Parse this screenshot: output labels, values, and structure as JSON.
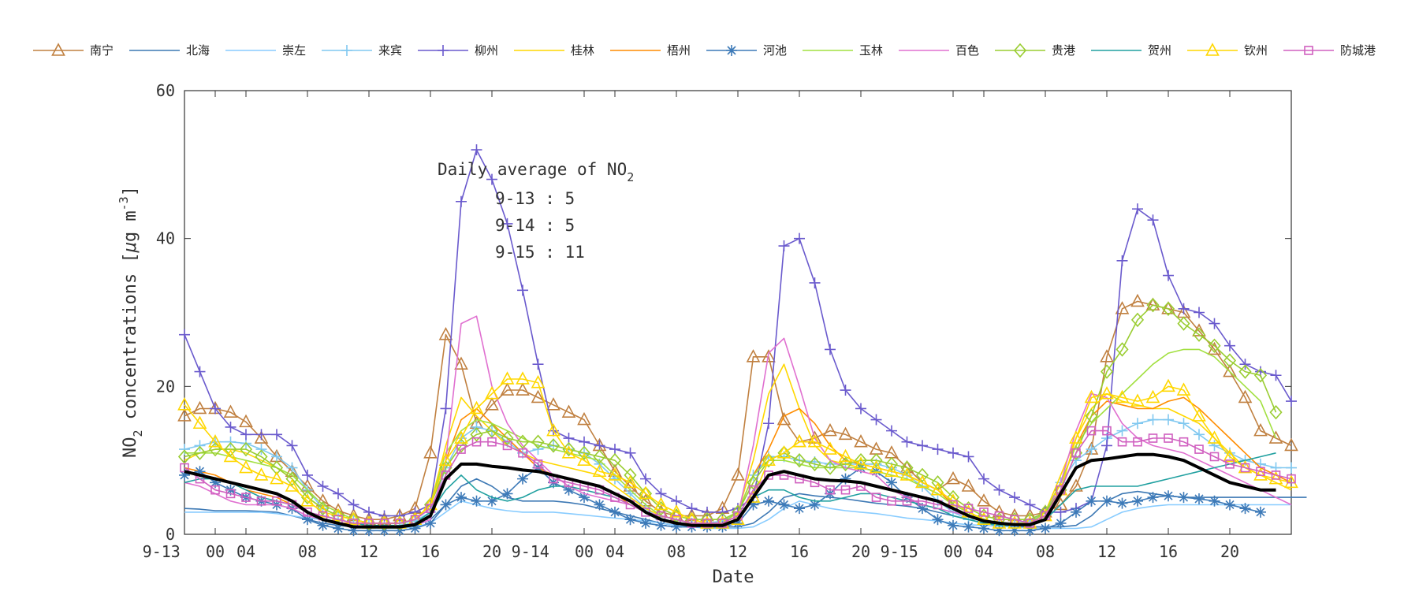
{
  "chart_data": {
    "type": "line",
    "xlabel": "Date",
    "ylabel_parts": [
      "NO",
      "2",
      " concentrations [",
      "μ",
      "g m",
      "-3",
      "]"
    ],
    "ylim": [
      0,
      60
    ],
    "y_ticks": [
      0,
      20,
      40,
      60
    ],
    "x_range_hours": [
      0,
      72
    ],
    "x_ticks": [
      {
        "hour": -1.5,
        "label": "9-13"
      },
      {
        "hour": 2,
        "label": "00"
      },
      {
        "hour": 4,
        "label": "04"
      },
      {
        "hour": 8,
        "label": "08"
      },
      {
        "hour": 12,
        "label": "12"
      },
      {
        "hour": 16,
        "label": "16"
      },
      {
        "hour": 20,
        "label": "20"
      },
      {
        "hour": 22.5,
        "label": "9-14"
      },
      {
        "hour": 26,
        "label": "00"
      },
      {
        "hour": 28,
        "label": "04"
      },
      {
        "hour": 32,
        "label": "08"
      },
      {
        "hour": 36,
        "label": "12"
      },
      {
        "hour": 40,
        "label": "16"
      },
      {
        "hour": 44,
        "label": "20"
      },
      {
        "hour": 46.5,
        "label": "9-15"
      },
      {
        "hour": 50,
        "label": "00"
      },
      {
        "hour": 52,
        "label": "04"
      },
      {
        "hour": 56,
        "label": "08"
      },
      {
        "hour": 60,
        "label": "12"
      },
      {
        "hour": 64,
        "label": "16"
      },
      {
        "hour": 68,
        "label": "20"
      }
    ],
    "annotation": {
      "title_parts": [
        "Daily average of NO",
        "2"
      ],
      "lines": [
        "9-13 : 5",
        "9-14 : 5",
        "9-15 : 11"
      ]
    },
    "legend_placement": "top",
    "series": [
      {
        "name": "南宁",
        "color": "#c08040",
        "marker": "triangle",
        "values": [
          16,
          17,
          17,
          16.5,
          15.2,
          13,
          10.5,
          8.5,
          6.5,
          4.5,
          3.2,
          2.5,
          2,
          2,
          2.5,
          3.5,
          11,
          27,
          23,
          15,
          17.5,
          19.5,
          19.5,
          18.5,
          17.5,
          16.5,
          15.5,
          12,
          8.5,
          6.5,
          4.5,
          3,
          2.5,
          2.5,
          2.5,
          3.5,
          8,
          24,
          24,
          15.5,
          12.5,
          13,
          14,
          13.5,
          12.5,
          11.5,
          11,
          9,
          7,
          6,
          7.5,
          6.5,
          4.5,
          3,
          2.5,
          2.5,
          3,
          4,
          6.5,
          11.5,
          24,
          30.5,
          31.5,
          31,
          30.5,
          30,
          27.5,
          25,
          22,
          18.5,
          14,
          13,
          12
        ]
      },
      {
        "name": "北海",
        "color": "#3c78b4",
        "marker": "none",
        "values": [
          3.5,
          3.4,
          3.2,
          3.2,
          3.2,
          3.1,
          3,
          2.5,
          2,
          1.5,
          1.2,
          1,
          1,
          1,
          1,
          1.2,
          2,
          4,
          6.5,
          7.5,
          6.5,
          5,
          4.5,
          4.5,
          4.5,
          4.3,
          4,
          3.5,
          3,
          2.5,
          2,
          1.5,
          1.2,
          1,
          1,
          1,
          1,
          1.5,
          3,
          5,
          5.5,
          5.2,
          5,
          4.8,
          4.5,
          4.2,
          4,
          3.8,
          3.5,
          3,
          2.5,
          2,
          1.5,
          1.2,
          1,
          1,
          1,
          1,
          1.2,
          2.5,
          4.5,
          5.5,
          5.8,
          5.5,
          5.2,
          5,
          5,
          5,
          5,
          5,
          5,
          5,
          5,
          5
        ]
      },
      {
        "name": "崇左",
        "color": "#88ccff",
        "marker": "none",
        "values": [
          3,
          3,
          3,
          3,
          3,
          3,
          2.8,
          2.5,
          2.2,
          2,
          1.5,
          1,
          0.8,
          0.8,
          0.8,
          1,
          1.5,
          3,
          4.5,
          4,
          3.5,
          3.2,
          3,
          3,
          3,
          2.8,
          2.6,
          2.4,
          2.2,
          2,
          1.8,
          1.5,
          1.2,
          1,
          0.8,
          0.8,
          0.8,
          1,
          2,
          3.5,
          4.5,
          4,
          3.5,
          3.2,
          3,
          2.8,
          2.5,
          2.2,
          2,
          1.8,
          1.5,
          1.3,
          1.2,
          1.1,
          1,
          0.8,
          0.8,
          0.8,
          0.8,
          1,
          2,
          3,
          3.5,
          3.8,
          4,
          4,
          4,
          4,
          4,
          4,
          4,
          4,
          4
        ]
      },
      {
        "name": "来宾",
        "color": "#80c8f0",
        "marker": "plus",
        "values": [
          11.5,
          12,
          12.5,
          12.5,
          12.3,
          11.5,
          10.5,
          9,
          6,
          3.5,
          2.5,
          2,
          1.5,
          1.5,
          1.5,
          1.8,
          3,
          9,
          13,
          14.5,
          14,
          12.5,
          11,
          11.5,
          12,
          11.5,
          11,
          9.5,
          7.5,
          5.5,
          3.5,
          2,
          1.5,
          1.5,
          1.5,
          1.8,
          3,
          8,
          10.5,
          10.5,
          10,
          9.8,
          9.5,
          9.5,
          9.5,
          9.5,
          9,
          8,
          6.5,
          4.5,
          3,
          2,
          1.5,
          1.5,
          1.5,
          1.8,
          3,
          7,
          10,
          11.5,
          13,
          14,
          15,
          15.5,
          15.5,
          15,
          13.5,
          12,
          11,
          10,
          9.5,
          9,
          9
        ]
      },
      {
        "name": "柳州",
        "color": "#6a5acd",
        "marker": "plus",
        "values": [
          27,
          22,
          17,
          14.5,
          13.5,
          13.5,
          13.5,
          12,
          8,
          6.5,
          5.5,
          4,
          3,
          2.5,
          2.5,
          3,
          4,
          17,
          45,
          52,
          48,
          42,
          33,
          23,
          14,
          13,
          12.5,
          12,
          11.5,
          11,
          7.5,
          5.5,
          4.5,
          3.5,
          3,
          3,
          3.5,
          5,
          15,
          39,
          40,
          34,
          25,
          19.5,
          17,
          15.5,
          14,
          12.5,
          12,
          11.5,
          11,
          10.5,
          7.5,
          6,
          5,
          4,
          3,
          3,
          3.5,
          4.5,
          12,
          37,
          44,
          42.5,
          35,
          30.5,
          30,
          28.5,
          25.5,
          23,
          22,
          21.5,
          18
        ]
      },
      {
        "name": "桂林",
        "color": "#ffd700",
        "marker": "none",
        "values": [
          10,
          11,
          11.5,
          11.5,
          11,
          10,
          9,
          7.5,
          5,
          3.5,
          2.5,
          2,
          1.5,
          1.5,
          1.5,
          2,
          4,
          12,
          18.5,
          16,
          14,
          12,
          11,
          10,
          9.5,
          9,
          8.5,
          8,
          6.5,
          5,
          3.5,
          2.5,
          2,
          1.5,
          1.5,
          1.5,
          3,
          10,
          19,
          23,
          17,
          12,
          10,
          9.5,
          9,
          8.5,
          8,
          7.5,
          6.5,
          5.5,
          4,
          3,
          2,
          1.5,
          1.5,
          1.5,
          3,
          8,
          13,
          17,
          19,
          18,
          17.5,
          17,
          17,
          16,
          15,
          13,
          11,
          9,
          8,
          7,
          6
        ]
      },
      {
        "name": "梧州",
        "color": "#ff8c00",
        "marker": "none",
        "values": [
          9,
          8.5,
          8,
          7,
          6,
          5.5,
          5,
          4,
          3,
          2,
          1.5,
          1.5,
          1.5,
          1.5,
          1.5,
          2,
          4,
          10,
          15.5,
          17,
          15,
          13,
          11,
          9,
          8,
          7.5,
          7,
          6.5,
          5.5,
          4,
          3,
          2,
          1.5,
          1.5,
          1.5,
          1.5,
          3,
          8,
          11.5,
          16,
          17,
          15,
          12,
          10,
          9.5,
          9,
          8.5,
          8,
          7,
          6,
          4,
          3,
          2,
          1.5,
          1.5,
          1.5,
          3,
          7,
          12,
          16,
          18,
          17.5,
          17,
          17,
          18,
          18.5,
          17,
          15,
          13,
          11,
          9,
          8,
          7
        ]
      },
      {
        "name": "河池",
        "color": "#3d7ab8",
        "marker": "asterisk",
        "values": [
          8,
          8.5,
          7,
          6,
          5,
          4.5,
          4,
          3.5,
          2,
          1.2,
          0.8,
          0.5,
          0.5,
          0.5,
          0.5,
          0.8,
          1.5,
          4,
          5,
          4.5,
          4.5,
          5.5,
          7.5,
          9,
          7,
          6,
          5,
          4,
          3,
          2,
          1.5,
          1.2,
          1,
          1,
          1,
          1,
          1.5,
          4,
          4.5,
          4,
          3.5,
          4,
          5.5,
          7.5,
          9,
          8.5,
          7,
          5,
          3.5,
          2,
          1.2,
          1,
          0.8,
          0.5,
          0.5,
          0.5,
          0.8,
          1.5,
          3,
          4.5,
          4.5,
          4.2,
          4.5,
          5,
          5.2,
          5,
          4.8,
          4.5,
          4,
          3.5,
          3
        ]
      },
      {
        "name": "玉林",
        "color": "#a2e040",
        "marker": "none",
        "values": [
          11,
          11,
          11,
          10.5,
          10,
          9.5,
          9,
          8,
          6,
          4,
          3,
          2,
          1.5,
          1.5,
          1.5,
          2,
          4,
          11,
          14,
          15.5,
          15,
          14,
          13,
          12,
          11.5,
          11,
          10.5,
          10,
          8,
          6,
          4,
          2.5,
          2,
          1.5,
          1.5,
          1.5,
          3,
          8,
          10,
          10,
          9.5,
          9,
          9,
          9,
          9,
          8.5,
          8,
          7.5,
          6.5,
          5.5,
          4,
          3,
          2,
          1.5,
          1.5,
          1.5,
          3,
          7,
          12,
          15,
          17,
          19,
          21,
          23,
          24.5,
          25,
          25,
          24,
          22,
          20,
          18,
          13
        ]
      },
      {
        "name": "百色",
        "color": "#e070d0",
        "marker": "none",
        "values": [
          7,
          6.5,
          5.5,
          4.5,
          4,
          4,
          4,
          3.5,
          2.5,
          2,
          1.5,
          1.2,
          1,
          1,
          1,
          1.2,
          2,
          10,
          28.5,
          29.5,
          20,
          15,
          12,
          10,
          8,
          6.5,
          5.5,
          5,
          4.5,
          4,
          3,
          2,
          1.5,
          1.5,
          1.5,
          1.5,
          2.5,
          12,
          24.5,
          26.5,
          20,
          13,
          10,
          9,
          8.5,
          8,
          6,
          5,
          4,
          3.5,
          3,
          2.5,
          2,
          1.5,
          1.5,
          1.5,
          2.5,
          7,
          14,
          19,
          18.5,
          15,
          13,
          12,
          11.5,
          11,
          10,
          9,
          8,
          7,
          6,
          5,
          4
        ]
      },
      {
        "name": "贵港",
        "color": "#9acd32",
        "marker": "diamond",
        "values": [
          10.5,
          11,
          11.5,
          11.5,
          11.5,
          10.5,
          9,
          7.5,
          5,
          3.5,
          2.5,
          2,
          1.5,
          1.5,
          1.5,
          2,
          4,
          9,
          12,
          13.5,
          14,
          13,
          12.5,
          12.5,
          12,
          11.5,
          11,
          10.5,
          10,
          8,
          5.5,
          3.5,
          2.5,
          2,
          2,
          2,
          3,
          7,
          10,
          11,
          10,
          9.5,
          9,
          9.5,
          10,
          10,
          9.5,
          9,
          8,
          7,
          5,
          3.5,
          2.5,
          2,
          2,
          2,
          3,
          6,
          11,
          16,
          22,
          25,
          29,
          31,
          30.5,
          28.5,
          27,
          25.5,
          23.5,
          22,
          21.5,
          16.5
        ]
      },
      {
        "name": "贺州",
        "color": "#20a0a0",
        "marker": "none",
        "values": [
          7,
          7.5,
          7.5,
          7,
          6,
          5,
          4.5,
          4,
          3,
          2.5,
          2,
          1.5,
          1.2,
          1.2,
          1.2,
          1.5,
          3,
          6,
          8,
          6,
          5,
          4.5,
          5,
          6,
          6.5,
          6.5,
          6,
          5.5,
          5,
          4,
          3,
          2,
          1.5,
          1.2,
          1.2,
          1.2,
          2,
          5,
          6,
          6,
          5,
          4.5,
          4.5,
          5,
          5.5,
          5.5,
          5,
          4.5,
          4,
          3.5,
          2.5,
          2,
          1.5,
          1.2,
          1.2,
          1.2,
          2,
          4,
          6,
          6.5,
          6.5,
          6.5,
          6.5,
          7,
          7.5,
          8,
          8.5,
          9,
          9.5,
          10,
          10.5,
          11
        ]
      },
      {
        "name": "钦州",
        "color": "#ffd700",
        "marker": "triangle",
        "values": [
          17.5,
          15,
          12.5,
          10.5,
          9,
          8,
          7.5,
          6.5,
          4.5,
          3,
          2.5,
          2,
          1.5,
          1.5,
          1.5,
          2,
          4,
          10,
          13,
          17,
          19,
          21,
          21,
          20.5,
          14,
          11,
          10,
          8.5,
          8,
          7,
          5.5,
          4,
          3,
          2,
          1.5,
          1.5,
          2,
          5,
          10,
          11,
          12.5,
          12.5,
          11.5,
          10.5,
          9.5,
          9,
          8.5,
          8,
          7,
          6,
          4.5,
          3,
          2,
          1.5,
          1.5,
          1.5,
          2.5,
          6,
          13,
          18.5,
          19,
          18.5,
          18,
          18.5,
          20,
          19.5,
          16,
          13,
          10.5,
          9,
          8,
          7.5,
          7
        ]
      },
      {
        "name": "防城港",
        "color": "#d060c0",
        "marker": "square",
        "values": [
          9,
          7.5,
          6,
          5.5,
          5,
          4.5,
          4.5,
          4,
          3,
          2.5,
          2,
          1.5,
          1.5,
          1.5,
          1.5,
          2,
          3.5,
          8,
          11.5,
          12.5,
          12.5,
          12,
          11,
          9.5,
          7.5,
          7,
          6.5,
          6,
          5,
          4,
          3,
          2.5,
          2,
          1.5,
          1.5,
          1.5,
          2.5,
          6,
          8,
          8,
          7.5,
          7,
          6,
          6,
          6.5,
          5,
          4.5,
          4.5,
          4.5,
          4,
          4,
          3.5,
          3,
          2.5,
          2,
          1.5,
          2.5,
          6,
          11,
          14,
          14,
          12.5,
          12.5,
          13,
          13,
          12.5,
          11.5,
          10.5,
          9.5,
          9,
          8.5,
          8,
          7.5
        ]
      },
      {
        "name": "",
        "color": "#000000",
        "marker": "none",
        "width": 4,
        "values": [
          8.5,
          8,
          7.5,
          7,
          6.5,
          6,
          5.5,
          4.5,
          3,
          2,
          1.5,
          1,
          1,
          1,
          1,
          1.3,
          2.5,
          7.5,
          9.5,
          9.5,
          9.2,
          9,
          8.7,
          8.5,
          8,
          7.5,
          7,
          6.5,
          5.5,
          4.5,
          3,
          2,
          1.5,
          1.2,
          1.2,
          1.2,
          2,
          5,
          8,
          8.5,
          8,
          7.5,
          7.3,
          7.2,
          7,
          6.5,
          6,
          5.5,
          5,
          4.5,
          3.5,
          2.5,
          1.8,
          1.5,
          1.3,
          1.3,
          2,
          5.5,
          9,
          10,
          10.2,
          10.5,
          10.8,
          10.8,
          10.5,
          10,
          9,
          8,
          7,
          6.5,
          6,
          6
        ]
      }
    ]
  }
}
